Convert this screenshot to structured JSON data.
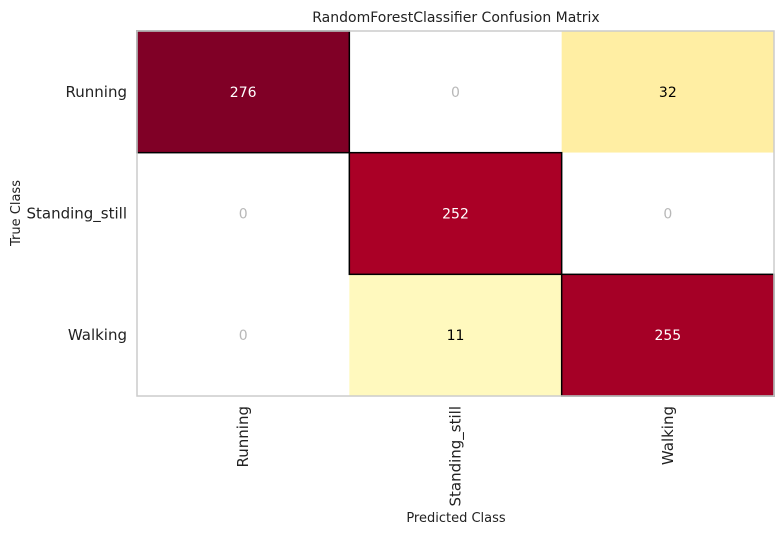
{
  "chart_data": {
    "type": "heatmap",
    "title": "RandomForestClassifier Confusion Matrix",
    "xlabel": "Predicted Class",
    "ylabel": "True Class",
    "x_categories": [
      "Running",
      "Standing_still",
      "Walking"
    ],
    "y_categories": [
      "Running",
      "Standing_still",
      "Walking"
    ],
    "values": [
      [
        276,
        0,
        32
      ],
      [
        0,
        252,
        0
      ],
      [
        0,
        11,
        255
      ]
    ],
    "grid": false,
    "diagonal_outline": true,
    "colors": {
      "high": "#800026",
      "mid": "#ffeda0",
      "low": "#ffffcc",
      "zero": "#ffffff",
      "zero_text": "#b8b8b8",
      "dark_text": "#000000",
      "light_text": "#ffffff",
      "frame": "#cccccc"
    }
  }
}
